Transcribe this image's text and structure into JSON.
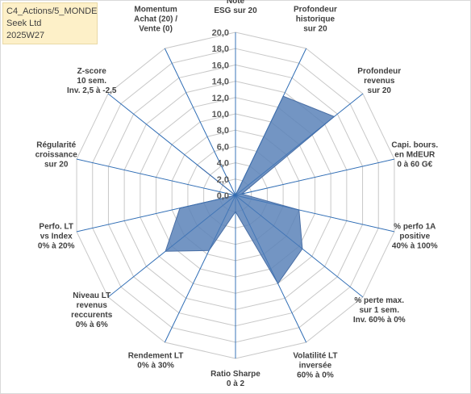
{
  "info": {
    "line1": "C4_Actions/5_MONDE",
    "line2": "Seek Ltd",
    "line3": "2025W27"
  },
  "chart_data": {
    "type": "radar",
    "rlim": [
      0,
      20
    ],
    "ticks": [
      "0,0",
      "2,0",
      "4,0",
      "6,0",
      "8,0",
      "10,0",
      "12,0",
      "14,0",
      "16,0",
      "18,0",
      "20,0"
    ],
    "grid": true,
    "colors": {
      "series": "#5b82b8",
      "spokes": "#2f6db5",
      "grid": "#c8c8c8"
    },
    "categories": [
      [
        "Note",
        "ESG sur 20"
      ],
      [
        "Profondeur",
        "historique",
        "sur 20"
      ],
      [
        "Profondeur",
        "revenus",
        "sur 20"
      ],
      [
        "Capi. bours.",
        "en MdEUR",
        "0 à 60 G€"
      ],
      [
        "% perfo 1A",
        "positive",
        "40% à 100%"
      ],
      [
        "% perte max.",
        "sur 1 sem.",
        "Inv. 60% à 0%"
      ],
      [
        "Volatilité LT",
        "inversée",
        "60% à 0%"
      ],
      [
        "Ratio Sharpe",
        "0 à 2"
      ],
      [
        "Rendement LT",
        "0% à 30%"
      ],
      [
        "Niveau LT",
        "revenus",
        "reccurents",
        "0% à 6%"
      ],
      [
        "Perfo. LT",
        "vs Index",
        "0% à 20%"
      ],
      [
        "Régularité",
        "croissance",
        "sur 20"
      ],
      [
        "Z-score",
        "10 sem.",
        "Inv. 2,5 à -2,5"
      ],
      [
        "Momentum",
        "Achat (20) /",
        "Vente (0)"
      ]
    ],
    "series": [
      {
        "values": [
          0,
          13.5,
          15.5,
          0.8,
          8.0,
          10.5,
          12.0,
          2.0,
          7.5,
          11.0,
          7.0,
          0.0,
          6.0,
          0.0
        ]
      }
    ]
  }
}
